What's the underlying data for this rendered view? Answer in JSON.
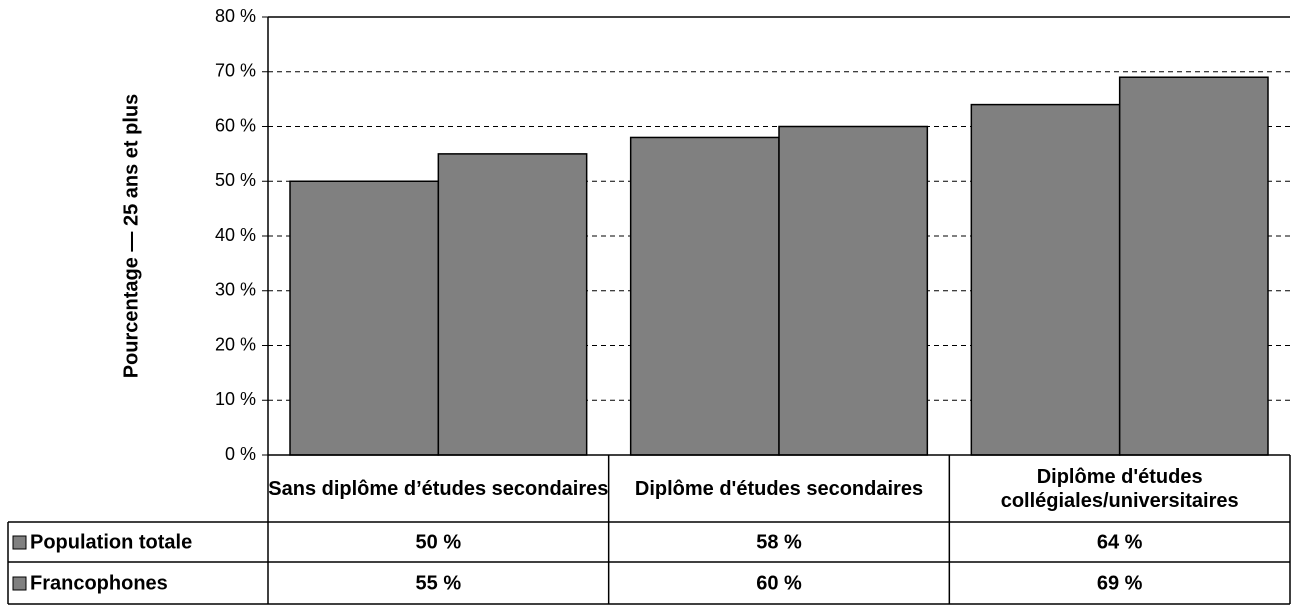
{
  "chart_data": {
    "type": "bar",
    "y_label": "Pourcentage — 25 ans et plus",
    "categories": [
      "Sans diplôme d’études secondaires",
      "Diplôme d'études secondaires",
      "Diplôme d'études collégiales/universitaires"
    ],
    "series": [
      {
        "name": "Population totale",
        "color": "#808080",
        "values": [
          50,
          58,
          64
        ],
        "value_labels": [
          "50 %",
          "58 %",
          "64 %"
        ]
      },
      {
        "name": "Francophones",
        "color": "#808080",
        "values": [
          55,
          60,
          69
        ],
        "value_labels": [
          "55 %",
          "60 %",
          "69 %"
        ]
      }
    ],
    "ylim": [
      0,
      80
    ],
    "yticks": [
      {
        "value": 0,
        "label": "0 %"
      },
      {
        "value": 10,
        "label": "10 %"
      },
      {
        "value": 20,
        "label": "20 %"
      },
      {
        "value": 30,
        "label": "30 %"
      },
      {
        "value": 40,
        "label": "40 %"
      },
      {
        "value": 50,
        "label": "50 %"
      },
      {
        "value": 60,
        "label": "60 %"
      },
      {
        "value": 70,
        "label": "70 %"
      },
      {
        "value": 80,
        "label": "80 %"
      }
    ],
    "grid": true
  }
}
